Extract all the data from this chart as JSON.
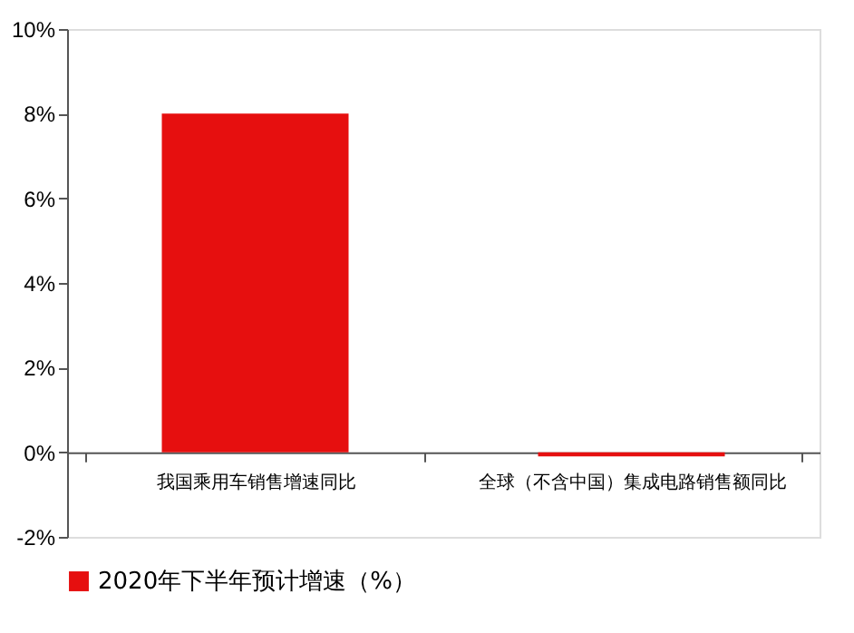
{
  "chart_data": {
    "type": "bar",
    "categories": [
      "我国乘用车销售增速同比",
      "全球（不含中国）集成电路销售额同比"
    ],
    "series": [
      {
        "name": "2020年下半年预计增速（%）",
        "color": "#e60f0f",
        "values": [
          8,
          -0.1
        ]
      }
    ],
    "ylim": [
      -2,
      10
    ],
    "yticks": [
      {
        "value": -2,
        "label": "-2%"
      },
      {
        "value": 0,
        "label": "0%"
      },
      {
        "value": 2,
        "label": "2%"
      },
      {
        "value": 4,
        "label": "4%"
      },
      {
        "value": 6,
        "label": "6%"
      },
      {
        "value": 8,
        "label": "8%"
      },
      {
        "value": 10,
        "label": "10%"
      }
    ],
    "grid": false,
    "legend": "bottom"
  }
}
